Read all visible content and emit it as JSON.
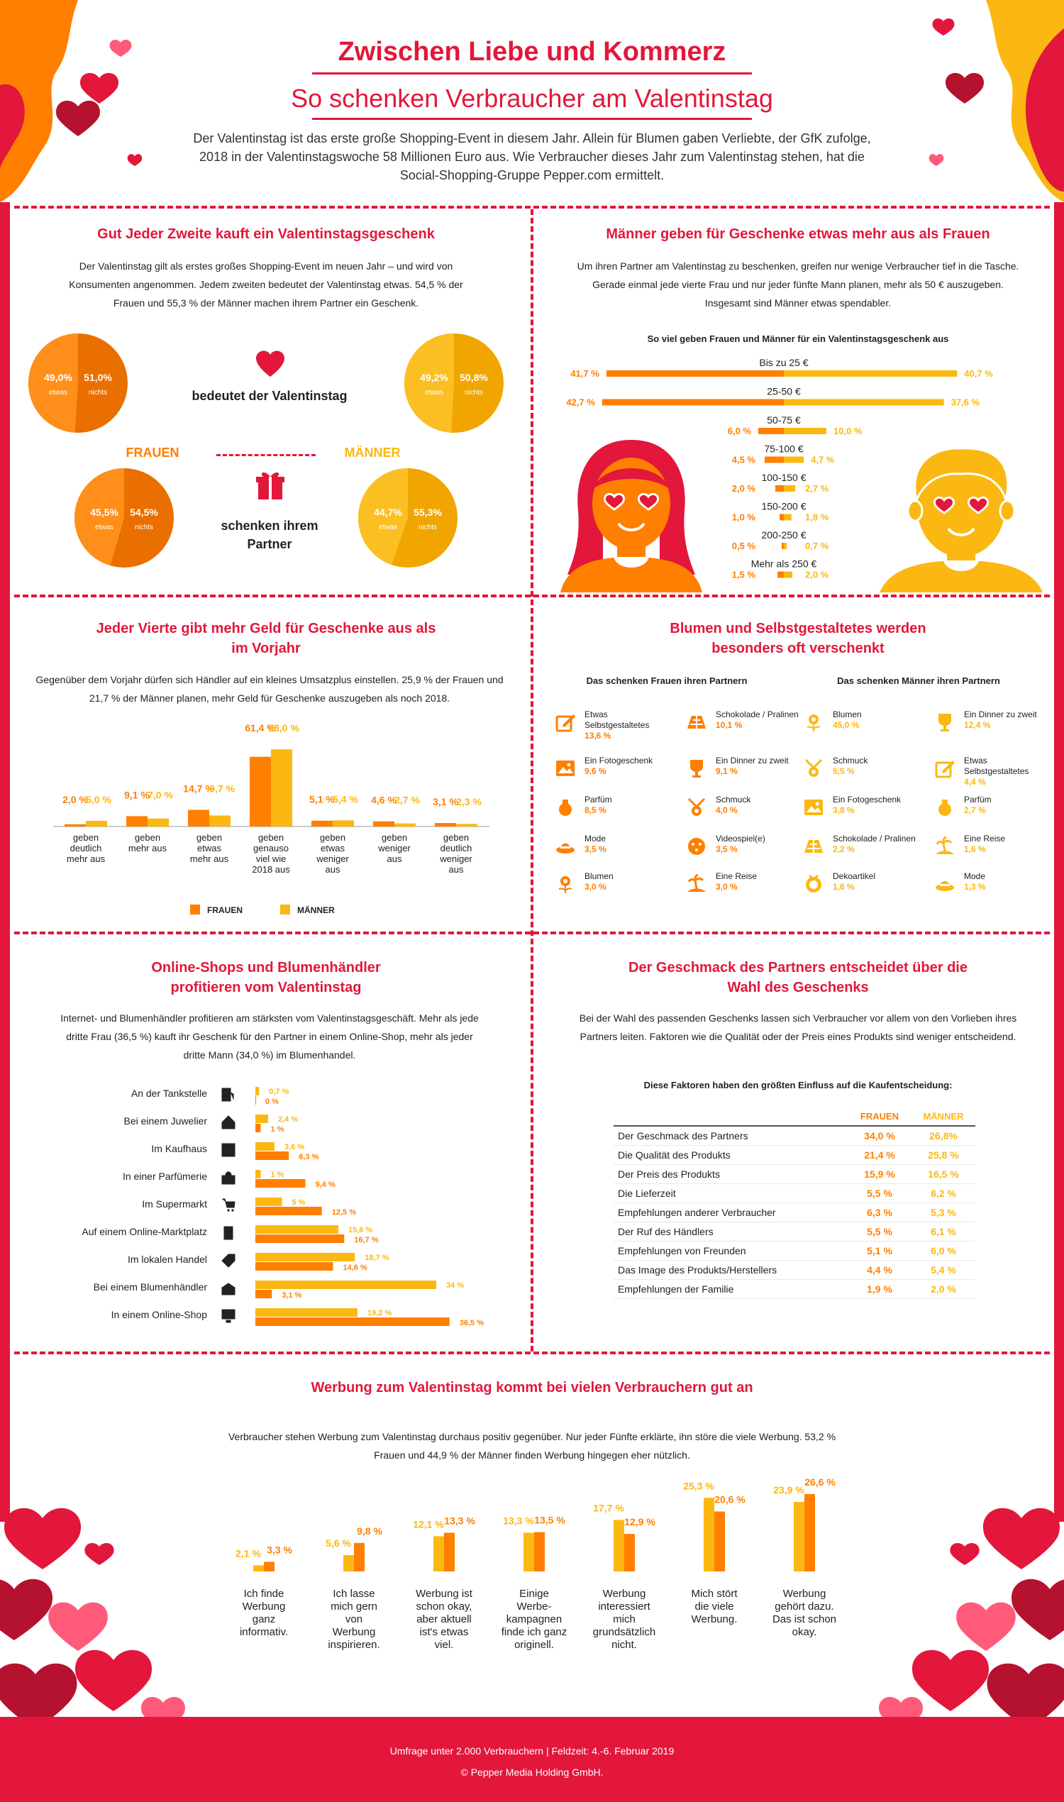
{
  "header": {
    "title": "Zwischen Liebe und Kommerz",
    "subtitle": "So schenken Verbraucher am Valentinstag",
    "intro": "Der Valentinstag ist das erste große Shopping-Event in diesem Jahr. Allein für Blumen gaben Verliebte, der GfK zufolge, 2018 in der Valentinstagswoche 58 Millionen Euro aus. Wie Verbraucher dieses Jahr zum Valentinstag stehen, hat die Social-Shopping-Gruppe Pepper.com ermittelt."
  },
  "colors": {
    "red": "#e2173b",
    "orange": "#ff7f00",
    "yellow": "#fbb812",
    "dark_red": "#b4122e"
  },
  "section1": {
    "title": "Gut Jeder Zweite kauft ein Valentinstagsgeschenk",
    "text": "Der Valentinstag gilt als erstes großes Shopping-Event im neuen Jahr – und wird von Konsumenten angenommen. Jedem zweiten bedeutet der Valentinstag etwas. 54,5 % der Frauen und 55,3 % der Männer machen ihrem Partner ein Geschenk.",
    "label_bedeutet": "bedeutet der Valentinstag",
    "label_frauen": "FRAUEN",
    "label_maenner": "MÄNNER",
    "label_schenken": "schenken ihrem Partner",
    "pies": [
      {
        "group": "frauen-bedeutet",
        "a": "49,0%",
        "a_lbl": "etwas",
        "b": "51,0%",
        "b_lbl": "nichts",
        "a_val": 49.0
      },
      {
        "group": "maenner-bedeutet",
        "a": "49,2%",
        "a_lbl": "etwas",
        "b": "50,8%",
        "b_lbl": "nichts",
        "a_val": 49.2
      },
      {
        "group": "frauen-schenken",
        "a": "45,5%",
        "a_lbl": "etwas",
        "b": "54,5%",
        "b_lbl": "nichts",
        "a_val": 45.5
      },
      {
        "group": "maenner-schenken",
        "a": "44,7%",
        "a_lbl": "etwas",
        "b": "55,3%",
        "b_lbl": "nichts",
        "a_val": 44.7
      }
    ]
  },
  "section2": {
    "title": "Männer geben für Geschenke etwas mehr aus als Frauen",
    "text": "Um ihren Partner am Valentinstag zu beschenken, greifen nur wenige Verbraucher tief in die Tasche. Gerade einmal jede vierte Frau und nur jeder fünfte Mann planen, mehr als 50 € auszugeben. Insgesamt sind Männer etwas spendabler.",
    "chart_title": "So viel geben Frauen und Männer für ein Valentinstagsgeschenk aus"
  },
  "section3": {
    "title": "Jeder Vierte gibt mehr Geld für Geschenke aus als im Vorjahr",
    "text": "Gegenüber dem Vorjahr dürfen sich Händler auf ein kleines Umsatzplus einstellen. 25,9 % der Frauen und 21,7 % der Männer planen, mehr Geld für Geschenke auszugeben als noch 2018.",
    "legend_f": "FRAUEN",
    "legend_m": "MÄNNER"
  },
  "section4": {
    "title": "Blumen und Selbstgestaltetes werden besonders oft verschenkt",
    "col_f": "Das schenken Frauen ihren Partnern",
    "col_m": "Das schenken Männer ihren Partnern",
    "frauen": [
      {
        "icon": "pencil-icon",
        "label": "Etwas Selbstgestaltetes",
        "pct": "13,6 %"
      },
      {
        "icon": "chocolate-icon",
        "label": "Schokolade / Pralinen",
        "pct": "10,1 %"
      },
      {
        "icon": "photo-icon",
        "label": "Ein Fotogeschenk",
        "pct": "9,6 %"
      },
      {
        "icon": "wine-icon",
        "label": "Ein Dinner zu zweit",
        "pct": "9,1 %"
      },
      {
        "icon": "perfume-icon",
        "label": "Parfüm",
        "pct": "8,5 %"
      },
      {
        "icon": "jewelry-icon",
        "label": "Schmuck",
        "pct": "4,0 %"
      },
      {
        "icon": "hat-icon",
        "label": "Mode",
        "pct": "3,5 %"
      },
      {
        "icon": "gamepad-icon",
        "label": "Videospiel(e)",
        "pct": "3,5 %"
      },
      {
        "icon": "flower-icon",
        "label": "Blumen",
        "pct": "3,0 %"
      },
      {
        "icon": "island-icon",
        "label": "Eine Reise",
        "pct": "3,0 %"
      }
    ],
    "maenner": [
      {
        "icon": "flower-icon",
        "label": "Blumen",
        "pct": "45,0 %"
      },
      {
        "icon": "wine-icon",
        "label": "Ein Dinner zu zweit",
        "pct": "12,4 %"
      },
      {
        "icon": "jewelry-icon",
        "label": "Schmuck",
        "pct": "5,5 %"
      },
      {
        "icon": "pencil-icon",
        "label": "Etwas Selbstgestaltetes",
        "pct": "4,4 %"
      },
      {
        "icon": "photo-icon",
        "label": "Ein Fotogeschenk",
        "pct": "3,8 %"
      },
      {
        "icon": "perfume-icon",
        "label": "Parfüm",
        "pct": "2,7 %"
      },
      {
        "icon": "chocolate-icon",
        "label": "Schokolade / Pralinen",
        "pct": "2,2 %"
      },
      {
        "icon": "island-icon",
        "label": "Eine Reise",
        "pct": "1,6 %"
      },
      {
        "icon": "deco-icon",
        "label": "Dekoartikel",
        "pct": "1,6 %"
      },
      {
        "icon": "hat-icon",
        "label": "Mode",
        "pct": "1,3 %"
      }
    ]
  },
  "section5": {
    "title": "Online-Shops und Blumenhändler profitieren vom Valentinstag",
    "text": "Internet- und Blumenhändler profitieren am stärksten vom Valentinstagsgeschäft. Mehr als jede dritte Frau (36,5 %) kauft ihr Geschenk für den Partner in einem Online-Shop, mehr als jeder dritte Mann (34,0 %) im Blumenhandel."
  },
  "section6": {
    "title": "Der Geschmack des Partners entscheidet über die Wahl des Geschenks",
    "text": "Bei der Wahl des passenden Geschenks lassen sich Verbraucher vor allem von den Vorlieben ihres Partners leiten. Faktoren wie die Qualität oder der Preis eines Produkts sind weniger entscheidend.",
    "table_title": "Diese Faktoren haben den größten Einfluss auf die Kaufentscheidung:",
    "col_f": "FRAUEN",
    "col_m": "MÄNNER",
    "rows": [
      {
        "label": "Der Geschmack des Partners",
        "f": "34,0 %",
        "m": "26,8%"
      },
      {
        "label": "Die Qualität des Produkts",
        "f": "21,4 %",
        "m": "25,8 %"
      },
      {
        "label": "Der Preis des Produkts",
        "f": "15,9 %",
        "m": "16,5 %"
      },
      {
        "label": "Die Lieferzeit",
        "f": "5,5 %",
        "m": "6,2 %"
      },
      {
        "label": "Empfehlungen anderer Verbraucher",
        "f": "6,3 %",
        "m": "5,3 %"
      },
      {
        "label": "Der Ruf des Händlers",
        "f": "5,5 %",
        "m": "6,1 %"
      },
      {
        "label": "Empfehlungen von Freunden",
        "f": "5,1 %",
        "m": "6,0 %"
      },
      {
        "label": "Das Image des Produkts/Herstellers",
        "f": "4,4 %",
        "m": "5,4 %"
      },
      {
        "label": "Empfehlungen der Familie",
        "f": "1,9 %",
        "m": "2,0 %"
      }
    ]
  },
  "section7": {
    "title": "Werbung zum Valentinstag kommt bei vielen Verbrauchern gut an",
    "text": "Verbraucher stehen Werbung zum Valentinstag durchaus positiv gegenüber. Nur jeder Fünfte erklärte, ihn störe die viele Werbung. 53,2 % Frauen und 44,9 % der Männer finden Werbung hingegen eher nützlich."
  },
  "footer": {
    "line1": "Umfrage unter 2.000 Verbrauchern | Feldzeit: 4.-6. Februar 2019",
    "line2": "© Pepper Media Holding GmbH."
  },
  "chart_data": [
    {
      "id": "spending",
      "type": "bar",
      "orientation": "diverging-horizontal",
      "categories": [
        "Bis zu 25 €",
        "25-50 €",
        "50-75 €",
        "75-100 €",
        "100-150 €",
        "150-200 €",
        "200-250 €",
        "Mehr als 250 €"
      ],
      "series": [
        {
          "name": "Frauen",
          "values": [
            41.7,
            42.7,
            6.0,
            4.5,
            2.0,
            1.0,
            0.5,
            1.5
          ],
          "labels": [
            "41,7 %",
            "42,7 %",
            "6,0 %",
            "4,5 %",
            "2,0 %",
            "1,0 %",
            "0,5 %",
            "1,5 %"
          ]
        },
        {
          "name": "Männer",
          "values": [
            40.7,
            37.6,
            10.0,
            4.7,
            2.7,
            1.8,
            0.7,
            2.0
          ],
          "labels": [
            "40,7 %",
            "37,6 %",
            "10,0 %",
            "4,7 %",
            "2,7 %",
            "1,8 %",
            "0,7 %",
            "2,0 %"
          ]
        }
      ]
    },
    {
      "id": "more-money",
      "type": "bar",
      "categories": [
        "geben deutlich mehr aus",
        "geben mehr aus",
        "geben etwas mehr aus",
        "geben genauso viel wie 2018 aus",
        "geben etwas weniger aus",
        "geben weniger aus",
        "geben deutlich weniger aus"
      ],
      "series": [
        {
          "name": "FRAUEN",
          "values": [
            2.0,
            9.1,
            14.7,
            61.4,
            5.1,
            4.6,
            3.1
          ],
          "labels": [
            "2,0 %",
            "9,1 %",
            "14,7 %",
            "61,4 %",
            "5,1 %",
            "4,6 %",
            "3,1 %"
          ]
        },
        {
          "name": "MÄNNER",
          "values": [
            5.0,
            7.0,
            9.7,
            68.0,
            5.4,
            2.7,
            2.3
          ],
          "labels": [
            "5,0 %",
            "7,0 %",
            "9,7 %",
            "68,0 %",
            "5,4 %",
            "2,7 %",
            "2,3 %"
          ]
        }
      ]
    },
    {
      "id": "shops",
      "type": "bar",
      "orientation": "horizontal",
      "categories": [
        "An der Tankstelle",
        "Bei einem Juwelier",
        "Im Kaufhaus",
        "In einer Parfümerie",
        "Im Supermarkt",
        "Auf einem Online-Marktplatz",
        "Im lokalen Handel",
        "Bei einem Blumenhändler",
        "In einem Online-Shop"
      ],
      "icons": [
        "fuel-icon",
        "house-icon",
        "store-icon",
        "bag-icon",
        "cart-icon",
        "phone-icon",
        "tag-icon",
        "flower-shop-icon",
        "monitor-icon"
      ],
      "series": [
        {
          "name": "Männer",
          "values": [
            0.7,
            2.4,
            3.6,
            1.0,
            5.0,
            15.6,
            18.7,
            34.0,
            19.2
          ],
          "labels": [
            "0,7 %",
            "2,4 %",
            "3,6 %",
            "1 %",
            "5 %",
            "15,6 %",
            "18,7 %",
            "34 %",
            "19,2 %"
          ]
        },
        {
          "name": "Frauen",
          "values": [
            0,
            1,
            6.3,
            9.4,
            12.5,
            16.7,
            14.6,
            3.1,
            36.5
          ],
          "labels": [
            "0 %",
            "1 %",
            "6,3 %",
            "9,4 %",
            "12,5 %",
            "16,7 %",
            "14,6 %",
            "3,1 %",
            "36,5 %"
          ]
        }
      ]
    },
    {
      "id": "advertising",
      "type": "bar",
      "categories": [
        "Ich finde Werbung ganz informativ.",
        "Ich lasse mich gern von Werbung inspirieren.",
        "Werbung ist schon okay, aber aktuell ist's etwas viel.",
        "Einige Werbe-kampagnen finde ich ganz originell.",
        "Werbung interessiert mich grundsätzlich nicht.",
        "Mich stört die viele Werbung.",
        "Werbung gehört dazu. Das ist schon okay."
      ],
      "series": [
        {
          "name": "Männer",
          "values": [
            2.1,
            5.6,
            12.1,
            13.3,
            17.7,
            25.3,
            23.9
          ],
          "labels": [
            "2,1 %",
            "5,6 %",
            "12,1 %",
            "13,3 %",
            "17,7 %",
            "25,3 %",
            "23,9 %"
          ]
        },
        {
          "name": "Frauen",
          "values": [
            3.3,
            9.8,
            13.3,
            13.5,
            12.9,
            20.6,
            26.6
          ],
          "labels": [
            "3,3 %",
            "9,8 %",
            "13,3 %",
            "13,5 %",
            "12,9 %",
            "20,6 %",
            "26,6 %"
          ]
        }
      ]
    }
  ]
}
